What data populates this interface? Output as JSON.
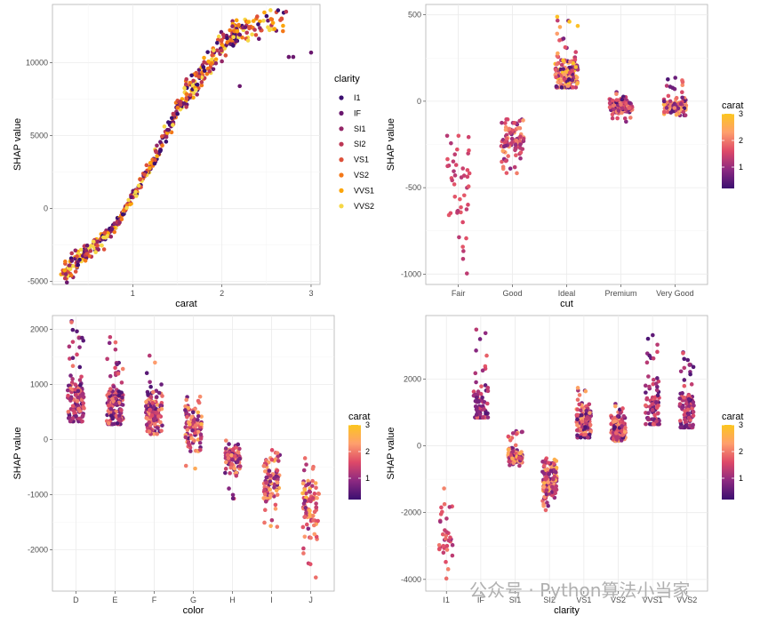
{
  "palette": {
    "I1": "#3b0f70",
    "IF": "#6a176e",
    "SI1": "#932667",
    "SI2": "#bc3754",
    "VS1": "#dd513a",
    "VS2": "#f37819",
    "VVS1": "#fca50a",
    "VVS2": "#f6d746"
  },
  "colorbar": {
    "stops": [
      "#3b0f70",
      "#8c2981",
      "#de4968",
      "#fe9f6d",
      "#fcc61e"
    ]
  },
  "watermark": {
    "text": "公众号 · Python算法小当家"
  },
  "chart_data": [
    {
      "id": "carat",
      "type": "scatter",
      "xlabel": "carat",
      "ylabel": "SHAP value",
      "xticks": [
        1,
        2,
        3
      ],
      "yticks": [
        -5000,
        0,
        5000,
        10000
      ],
      "xlim": [
        0.1,
        3.1
      ],
      "ylim": [
        -5200,
        14000
      ],
      "color_by": "clarity",
      "legend": {
        "title": "clarity",
        "entries": [
          "I1",
          "IF",
          "SI1",
          "SI2",
          "VS1",
          "VS2",
          "VVS1",
          "VVS2"
        ]
      },
      "trend": [
        [
          0.2,
          -4600
        ],
        [
          0.3,
          -4000
        ],
        [
          0.4,
          -3400
        ],
        [
          0.5,
          -2900
        ],
        [
          0.6,
          -2500
        ],
        [
          0.7,
          -1900
        ],
        [
          0.8,
          -1200
        ],
        [
          0.9,
          -300
        ],
        [
          1.0,
          800
        ],
        [
          1.1,
          1900
        ],
        [
          1.2,
          3000
        ],
        [
          1.3,
          4100
        ],
        [
          1.4,
          5400
        ],
        [
          1.5,
          6800
        ],
        [
          1.6,
          7800
        ],
        [
          1.7,
          8500
        ],
        [
          1.8,
          9300
        ],
        [
          1.9,
          10200
        ],
        [
          2.0,
          11300
        ],
        [
          2.1,
          11800
        ],
        [
          2.2,
          12100
        ],
        [
          2.3,
          12400
        ],
        [
          2.5,
          12800
        ],
        [
          2.7,
          13100
        ]
      ],
      "outliers": [
        [
          2.72,
          13500,
          "SI2"
        ],
        [
          2.75,
          10400,
          "IF"
        ],
        [
          2.8,
          10400,
          "IF"
        ],
        [
          3.0,
          10700,
          "IF"
        ],
        [
          2.2,
          8400,
          "IF"
        ],
        [
          2.0,
          10100,
          "SI1"
        ],
        [
          2.55,
          13000,
          "VS2"
        ]
      ]
    },
    {
      "id": "cut",
      "type": "strip",
      "xlabel": "cut",
      "ylabel": "SHAP value",
      "categories": [
        "Fair",
        "Good",
        "Ideal",
        "Premium",
        "Very Good"
      ],
      "yticks": [
        -1000,
        -500,
        0,
        500
      ],
      "ylim": [
        -1060,
        560
      ],
      "colorbar": {
        "title": "carat",
        "ticks": [
          1,
          2,
          3
        ],
        "range": [
          0.2,
          3
        ]
      },
      "groups": [
        {
          "center": -500,
          "spread": 220,
          "min": -1000,
          "max": -200,
          "n": 45,
          "cmin": 0.35,
          "cmax": 0.55
        },
        {
          "center": -220,
          "spread": 80,
          "min": -420,
          "max": -100,
          "n": 90,
          "cmin": 0.2,
          "cmax": 0.8
        },
        {
          "center": 150,
          "spread": 70,
          "min": 80,
          "max": 520,
          "n": 170,
          "cmin": 0.05,
          "cmax": 1.0
        },
        {
          "center": -25,
          "spread": 30,
          "min": -120,
          "max": 60,
          "n": 110,
          "cmin": 0.05,
          "cmax": 0.7
        },
        {
          "center": -30,
          "spread": 35,
          "min": -90,
          "max": 160,
          "n": 110,
          "cmin": 0.05,
          "cmax": 0.9
        }
      ]
    },
    {
      "id": "color",
      "type": "strip",
      "xlabel": "color",
      "ylabel": "SHAP value",
      "categories": [
        "D",
        "E",
        "F",
        "G",
        "H",
        "I",
        "J"
      ],
      "yticks": [
        -2000,
        -1000,
        0,
        1000,
        2000
      ],
      "ylim": [
        -2750,
        2250
      ],
      "colorbar": {
        "title": "carat",
        "ticks": [
          1,
          2,
          3
        ],
        "range": [
          0.2,
          3
        ]
      },
      "groups": [
        {
          "center": 650,
          "spread": 350,
          "min": 330,
          "max": 2150,
          "n": 130,
          "cmin": 0.05,
          "cmax": 0.7
        },
        {
          "center": 600,
          "spread": 330,
          "min": 280,
          "max": 1900,
          "n": 130,
          "cmin": 0.05,
          "cmax": 0.7
        },
        {
          "center": 500,
          "spread": 330,
          "min": 100,
          "max": 1550,
          "n": 130,
          "cmin": 0.05,
          "cmax": 0.8
        },
        {
          "center": 200,
          "spread": 280,
          "min": -530,
          "max": 1020,
          "n": 100,
          "cmin": 0.1,
          "cmax": 0.9
        },
        {
          "center": -350,
          "spread": 200,
          "min": -1100,
          "max": 200,
          "n": 90,
          "cmin": 0.1,
          "cmax": 0.8
        },
        {
          "center": -700,
          "spread": 350,
          "min": -1700,
          "max": -150,
          "n": 100,
          "cmin": 0.15,
          "cmax": 0.85
        },
        {
          "center": -1200,
          "spread": 550,
          "min": -2600,
          "max": -200,
          "n": 90,
          "cmin": 0.2,
          "cmax": 0.9
        }
      ]
    },
    {
      "id": "clarity",
      "type": "strip",
      "xlabel": "clarity",
      "ylabel": "SHAP value",
      "categories": [
        "I1",
        "IF",
        "SI1",
        "SI2",
        "VS1",
        "VS2",
        "VVS1",
        "VVS2"
      ],
      "yticks": [
        -4000,
        -2000,
        0,
        2000
      ],
      "ylim": [
        -4350,
        3900
      ],
      "colorbar": {
        "title": "carat",
        "ticks": [
          1,
          2,
          3
        ],
        "range": [
          0.2,
          3
        ]
      },
      "groups": [
        {
          "center": -2700,
          "spread": 800,
          "min": -4200,
          "max": -950,
          "n": 35,
          "cmin": 0.3,
          "cmax": 0.7
        },
        {
          "center": 1100,
          "spread": 500,
          "min": 850,
          "max": 3550,
          "n": 80,
          "cmin": 0.05,
          "cmax": 0.6
        },
        {
          "center": -300,
          "spread": 180,
          "min": -650,
          "max": 450,
          "n": 110,
          "cmin": 0.15,
          "cmax": 0.9
        },
        {
          "center": -1000,
          "spread": 400,
          "min": -1950,
          "max": -350,
          "n": 130,
          "cmin": 0.15,
          "cmax": 0.9
        },
        {
          "center": 700,
          "spread": 420,
          "min": 250,
          "max": 1850,
          "n": 130,
          "cmin": 0.05,
          "cmax": 0.8
        },
        {
          "center": 500,
          "spread": 320,
          "min": 150,
          "max": 1300,
          "n": 130,
          "cmin": 0.05,
          "cmax": 0.8
        },
        {
          "center": 1000,
          "spread": 700,
          "min": 650,
          "max": 3600,
          "n": 90,
          "cmin": 0.05,
          "cmax": 0.6
        },
        {
          "center": 1000,
          "spread": 600,
          "min": 550,
          "max": 2800,
          "n": 110,
          "cmin": 0.05,
          "cmax": 0.6
        }
      ]
    }
  ]
}
